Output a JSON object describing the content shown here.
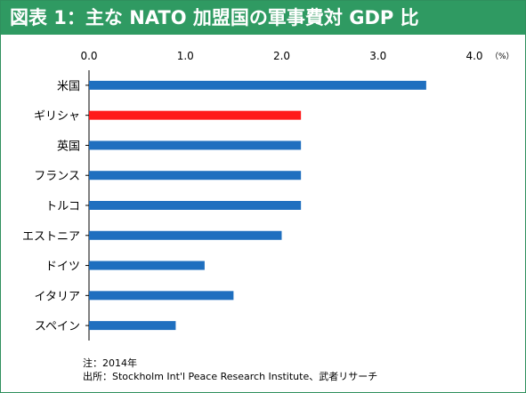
{
  "title": "図表 1：主な NATO 加盟国の軍事費対 GDP 比",
  "colors": {
    "title_bg": "#2f9a62",
    "bar": "#1f6fbf",
    "highlight": "#ff1a1a"
  },
  "chart_data": {
    "type": "bar",
    "orientation": "horizontal",
    "unit": "（%）",
    "xlim": [
      0,
      4.0
    ],
    "xticks": [
      "0.0",
      "1.0",
      "2.0",
      "3.0",
      "4.0"
    ],
    "categories": [
      "米国",
      "ギリシャ",
      "英国",
      "フランス",
      "トルコ",
      "エストニア",
      "ドイツ",
      "イタリア",
      "スペイン"
    ],
    "values": [
      3.5,
      2.2,
      2.2,
      2.2,
      2.2,
      2.0,
      1.2,
      1.5,
      0.9
    ],
    "highlight": "ギリシャ",
    "grid": false
  },
  "notes": {
    "note": "注：2014年",
    "source": "出所：Stockholm Int'l Peace Research Institute、武者リサーチ"
  }
}
